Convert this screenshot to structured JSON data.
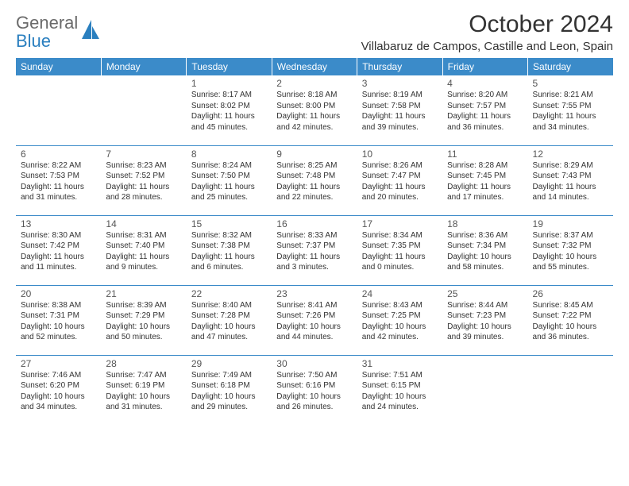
{
  "logo": {
    "text_gray": "General",
    "text_blue": "Blue"
  },
  "title": "October 2024",
  "location": "Villabaruz de Campos, Castille and Leon, Spain",
  "colors": {
    "header_bg": "#3b8bc9",
    "header_text": "#ffffff",
    "row_border": "#3b8bc9",
    "logo_gray": "#6a6a6a",
    "logo_blue": "#2a7fbf"
  },
  "day_headers": [
    "Sunday",
    "Monday",
    "Tuesday",
    "Wednesday",
    "Thursday",
    "Friday",
    "Saturday"
  ],
  "weeks": [
    [
      null,
      null,
      {
        "n": "1",
        "sr": "8:17 AM",
        "ss": "8:02 PM",
        "dl": "11 hours and 45 minutes."
      },
      {
        "n": "2",
        "sr": "8:18 AM",
        "ss": "8:00 PM",
        "dl": "11 hours and 42 minutes."
      },
      {
        "n": "3",
        "sr": "8:19 AM",
        "ss": "7:58 PM",
        "dl": "11 hours and 39 minutes."
      },
      {
        "n": "4",
        "sr": "8:20 AM",
        "ss": "7:57 PM",
        "dl": "11 hours and 36 minutes."
      },
      {
        "n": "5",
        "sr": "8:21 AM",
        "ss": "7:55 PM",
        "dl": "11 hours and 34 minutes."
      }
    ],
    [
      {
        "n": "6",
        "sr": "8:22 AM",
        "ss": "7:53 PM",
        "dl": "11 hours and 31 minutes."
      },
      {
        "n": "7",
        "sr": "8:23 AM",
        "ss": "7:52 PM",
        "dl": "11 hours and 28 minutes."
      },
      {
        "n": "8",
        "sr": "8:24 AM",
        "ss": "7:50 PM",
        "dl": "11 hours and 25 minutes."
      },
      {
        "n": "9",
        "sr": "8:25 AM",
        "ss": "7:48 PM",
        "dl": "11 hours and 22 minutes."
      },
      {
        "n": "10",
        "sr": "8:26 AM",
        "ss": "7:47 PM",
        "dl": "11 hours and 20 minutes."
      },
      {
        "n": "11",
        "sr": "8:28 AM",
        "ss": "7:45 PM",
        "dl": "11 hours and 17 minutes."
      },
      {
        "n": "12",
        "sr": "8:29 AM",
        "ss": "7:43 PM",
        "dl": "11 hours and 14 minutes."
      }
    ],
    [
      {
        "n": "13",
        "sr": "8:30 AM",
        "ss": "7:42 PM",
        "dl": "11 hours and 11 minutes."
      },
      {
        "n": "14",
        "sr": "8:31 AM",
        "ss": "7:40 PM",
        "dl": "11 hours and 9 minutes."
      },
      {
        "n": "15",
        "sr": "8:32 AM",
        "ss": "7:38 PM",
        "dl": "11 hours and 6 minutes."
      },
      {
        "n": "16",
        "sr": "8:33 AM",
        "ss": "7:37 PM",
        "dl": "11 hours and 3 minutes."
      },
      {
        "n": "17",
        "sr": "8:34 AM",
        "ss": "7:35 PM",
        "dl": "11 hours and 0 minutes."
      },
      {
        "n": "18",
        "sr": "8:36 AM",
        "ss": "7:34 PM",
        "dl": "10 hours and 58 minutes."
      },
      {
        "n": "19",
        "sr": "8:37 AM",
        "ss": "7:32 PM",
        "dl": "10 hours and 55 minutes."
      }
    ],
    [
      {
        "n": "20",
        "sr": "8:38 AM",
        "ss": "7:31 PM",
        "dl": "10 hours and 52 minutes."
      },
      {
        "n": "21",
        "sr": "8:39 AM",
        "ss": "7:29 PM",
        "dl": "10 hours and 50 minutes."
      },
      {
        "n": "22",
        "sr": "8:40 AM",
        "ss": "7:28 PM",
        "dl": "10 hours and 47 minutes."
      },
      {
        "n": "23",
        "sr": "8:41 AM",
        "ss": "7:26 PM",
        "dl": "10 hours and 44 minutes."
      },
      {
        "n": "24",
        "sr": "8:43 AM",
        "ss": "7:25 PM",
        "dl": "10 hours and 42 minutes."
      },
      {
        "n": "25",
        "sr": "8:44 AM",
        "ss": "7:23 PM",
        "dl": "10 hours and 39 minutes."
      },
      {
        "n": "26",
        "sr": "8:45 AM",
        "ss": "7:22 PM",
        "dl": "10 hours and 36 minutes."
      }
    ],
    [
      {
        "n": "27",
        "sr": "7:46 AM",
        "ss": "6:20 PM",
        "dl": "10 hours and 34 minutes."
      },
      {
        "n": "28",
        "sr": "7:47 AM",
        "ss": "6:19 PM",
        "dl": "10 hours and 31 minutes."
      },
      {
        "n": "29",
        "sr": "7:49 AM",
        "ss": "6:18 PM",
        "dl": "10 hours and 29 minutes."
      },
      {
        "n": "30",
        "sr": "7:50 AM",
        "ss": "6:16 PM",
        "dl": "10 hours and 26 minutes."
      },
      {
        "n": "31",
        "sr": "7:51 AM",
        "ss": "6:15 PM",
        "dl": "10 hours and 24 minutes."
      },
      null,
      null
    ]
  ],
  "labels": {
    "sunrise": "Sunrise:",
    "sunset": "Sunset:",
    "daylight": "Daylight:"
  }
}
